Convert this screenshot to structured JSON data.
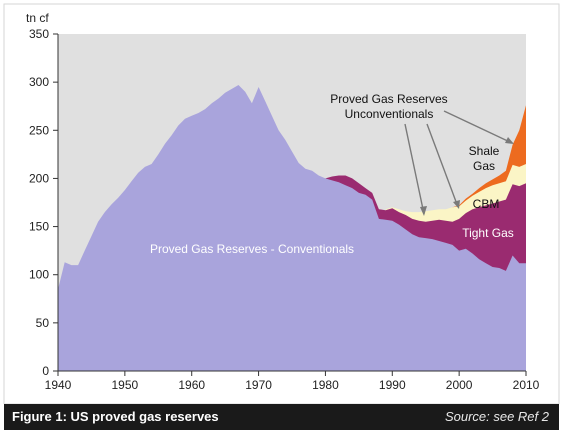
{
  "chart_data": {
    "type": "area",
    "stacked": true,
    "title": "",
    "ylabel": "tn cf",
    "xlabel": "",
    "xlim": [
      1940,
      2010
    ],
    "ylim": [
      0,
      350
    ],
    "x_ticks": [
      1940,
      1950,
      1960,
      1970,
      1980,
      1990,
      2000,
      2010
    ],
    "y_ticks": [
      0,
      50,
      100,
      150,
      200,
      250,
      300,
      350
    ],
    "grid": false,
    "legend": "none",
    "series": [
      {
        "name": "Proved Gas Reserves - Conventionals",
        "color": "#a9a4dc",
        "points": [
          [
            1940,
            0
          ],
          [
            1940,
            85
          ],
          [
            1941,
            113
          ],
          [
            1942,
            110
          ],
          [
            1943,
            110
          ],
          [
            1944,
            125
          ],
          [
            1945,
            140
          ],
          [
            1946,
            155
          ],
          [
            1947,
            165
          ],
          [
            1948,
            173
          ],
          [
            1949,
            180
          ],
          [
            1950,
            188
          ],
          [
            1951,
            197
          ],
          [
            1952,
            206
          ],
          [
            1953,
            212
          ],
          [
            1954,
            215
          ],
          [
            1955,
            225
          ],
          [
            1956,
            236
          ],
          [
            1957,
            245
          ],
          [
            1958,
            255
          ],
          [
            1959,
            262
          ],
          [
            1960,
            265
          ],
          [
            1961,
            268
          ],
          [
            1962,
            272
          ],
          [
            1963,
            278
          ],
          [
            1964,
            283
          ],
          [
            1965,
            289
          ],
          [
            1966,
            293
          ],
          [
            1967,
            297
          ],
          [
            1968,
            290
          ],
          [
            1969,
            278
          ],
          [
            1970,
            295
          ],
          [
            1971,
            280
          ],
          [
            1972,
            265
          ],
          [
            1973,
            250
          ],
          [
            1974,
            240
          ],
          [
            1975,
            228
          ],
          [
            1976,
            216
          ],
          [
            1977,
            210
          ],
          [
            1978,
            208
          ],
          [
            1979,
            203
          ],
          [
            1980,
            200
          ],
          [
            1981,
            198
          ],
          [
            1982,
            196
          ],
          [
            1983,
            193
          ],
          [
            1984,
            190
          ],
          [
            1985,
            185
          ],
          [
            1986,
            183
          ],
          [
            1987,
            178
          ],
          [
            1988,
            158
          ],
          [
            1989,
            157
          ],
          [
            1990,
            156
          ],
          [
            1991,
            152
          ],
          [
            1992,
            147
          ],
          [
            1993,
            142
          ],
          [
            1994,
            139
          ],
          [
            1995,
            138
          ],
          [
            1996,
            137
          ],
          [
            1997,
            135
          ],
          [
            1998,
            133
          ],
          [
            1999,
            131
          ],
          [
            2000,
            125
          ],
          [
            2001,
            127
          ],
          [
            2002,
            122
          ],
          [
            2003,
            116
          ],
          [
            2004,
            112
          ],
          [
            2005,
            108
          ],
          [
            2006,
            107
          ],
          [
            2007,
            104
          ],
          [
            2008,
            120
          ],
          [
            2009,
            112
          ],
          [
            2010,
            112
          ]
        ]
      },
      {
        "name": "Tight Gas",
        "color": "#9a2b70",
        "points": [
          [
            1980,
            200
          ],
          [
            1981,
            202
          ],
          [
            1982,
            203
          ],
          [
            1983,
            203
          ],
          [
            1984,
            200
          ],
          [
            1985,
            195
          ],
          [
            1986,
            190
          ],
          [
            1987,
            185
          ],
          [
            1988,
            168
          ],
          [
            1989,
            167
          ],
          [
            1990,
            169
          ],
          [
            1991,
            165
          ],
          [
            1992,
            162
          ],
          [
            1993,
            158
          ],
          [
            1994,
            156
          ],
          [
            1995,
            155
          ],
          [
            1996,
            156
          ],
          [
            1997,
            157
          ],
          [
            1998,
            156
          ],
          [
            1999,
            155
          ],
          [
            2000,
            158
          ],
          [
            2001,
            164
          ],
          [
            2002,
            168
          ],
          [
            2003,
            170
          ],
          [
            2004,
            172
          ],
          [
            2005,
            174
          ],
          [
            2006,
            176
          ],
          [
            2007,
            178
          ],
          [
            2008,
            194
          ],
          [
            2009,
            192
          ],
          [
            2010,
            195
          ]
        ]
      },
      {
        "name": "CBM",
        "color": "#fbf5c6",
        "points": [
          [
            1989,
            168
          ],
          [
            1990,
            170
          ],
          [
            1991,
            168
          ],
          [
            1992,
            166
          ],
          [
            1993,
            165
          ],
          [
            1994,
            165
          ],
          [
            1995,
            166
          ],
          [
            1996,
            167
          ],
          [
            1997,
            168
          ],
          [
            1998,
            168
          ],
          [
            1999,
            170
          ],
          [
            2000,
            171
          ],
          [
            2001,
            177
          ],
          [
            2002,
            182
          ],
          [
            2003,
            186
          ],
          [
            2004,
            190
          ],
          [
            2005,
            193
          ],
          [
            2006,
            195
          ],
          [
            2007,
            197
          ],
          [
            2008,
            214
          ],
          [
            2009,
            212
          ],
          [
            2010,
            215
          ]
        ]
      },
      {
        "name": "Shale Gas",
        "color": "#ed6b1f",
        "points": [
          [
            1999,
            170
          ],
          [
            2000,
            172
          ],
          [
            2001,
            179
          ],
          [
            2002,
            184
          ],
          [
            2003,
            190
          ],
          [
            2004,
            195
          ],
          [
            2005,
            199
          ],
          [
            2006,
            203
          ],
          [
            2007,
            208
          ],
          [
            2008,
            235
          ],
          [
            2009,
            250
          ],
          [
            2010,
            276
          ]
        ]
      }
    ],
    "annotations": {
      "conventionals_label": "Proved Gas Reserves - Conventionals",
      "unconventionals_label_line1": "Proved Gas Reserves",
      "unconventionals_label_line2": "Unconventionals",
      "shale_label_line1": "Shale",
      "shale_label_line2": "Gas",
      "cbm_label": "CBM",
      "tight_label": "Tight Gas"
    }
  },
  "caption": {
    "title": "Figure 1: US proved gas reserves",
    "source": "Source: see Ref 2"
  }
}
